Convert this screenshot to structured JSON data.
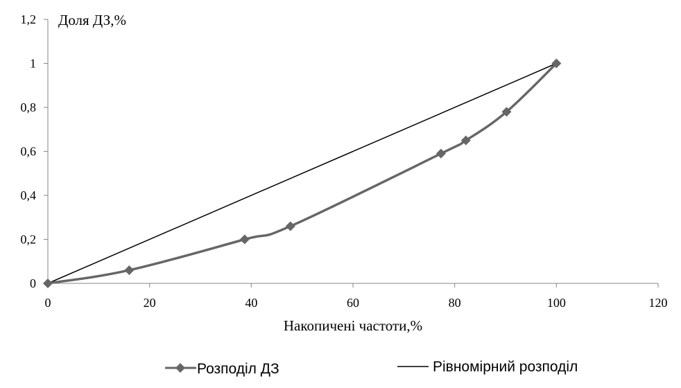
{
  "chart_data": {
    "type": "line",
    "title": "",
    "xlabel": "Накопичені частоти,%",
    "ylabel": "Доля ДЗ,%",
    "xlim": [
      0,
      120
    ],
    "ylim": [
      0,
      1.2
    ],
    "x_ticks": [
      0,
      20,
      40,
      60,
      80,
      100,
      120
    ],
    "y_ticks": [
      0,
      0.2,
      0.4,
      0.6,
      0.8,
      1,
      1.2
    ],
    "x_tick_labels": [
      "0",
      "20",
      "40",
      "60",
      "80",
      "100",
      "120"
    ],
    "y_tick_labels": [
      "0",
      "0,2",
      "0,4",
      "0,6",
      "0,8",
      "1",
      "1,2"
    ],
    "grid": false,
    "legend_position": "bottom",
    "series": [
      {
        "name": "Розподіл ДЗ",
        "color": "#666666",
        "marker": "diamond",
        "smooth": true,
        "x": [
          0,
          16,
          38.7,
          47.7,
          77.3,
          82.2,
          90.2,
          100
        ],
        "y": [
          0,
          0.06,
          0.2,
          0.26,
          0.59,
          0.65,
          0.78,
          1.0
        ]
      },
      {
        "name": "Рівномірний розподіл",
        "color": "#000000",
        "marker": "none",
        "smooth": false,
        "x": [
          0,
          100
        ],
        "y": [
          0,
          1.0
        ]
      }
    ]
  }
}
